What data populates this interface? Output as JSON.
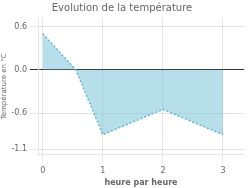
{
  "chart_data": {
    "type": "line",
    "title": "Evolution de la température",
    "xlabel": "heure par heure",
    "ylabel": "Température en °C",
    "x": [
      0,
      0.55,
      1.0,
      2.0,
      3.0
    ],
    "series": [
      {
        "color": "#60b8d0",
        "line_style": "dotted",
        "values": [
          0.5,
          0.0,
          -0.9,
          -0.55,
          -0.9
        ]
      }
    ],
    "xlim": [
      -0.08,
      3.35
    ],
    "xticks": [
      0,
      1,
      2,
      3
    ],
    "ylim": [
      -1.18,
      0.72
    ],
    "yticks": [
      -1.1,
      -0.6,
      {
        "value": 0,
        "label": "0.0"
      },
      0.6
    ],
    "grid": true
  }
}
